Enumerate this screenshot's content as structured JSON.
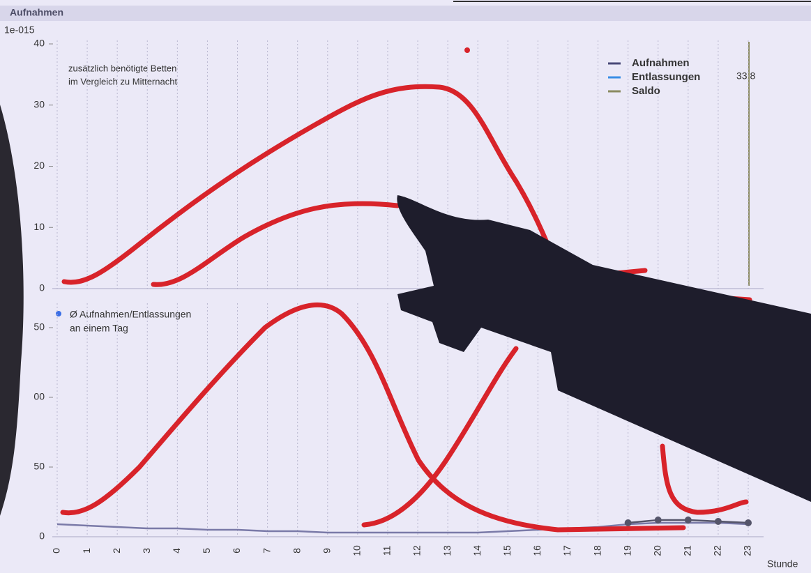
{
  "chart_data": [
    {
      "type": "line",
      "title": "Aufnahmen",
      "scale_label": "1e-015",
      "annotation_lines": [
        "zusätzlich benötigte Betten",
        "im Vergleich zu Mitternacht"
      ],
      "legend": [
        {
          "name": "Aufnahmen",
          "color": "#4a4a78"
        },
        {
          "name": "Entlassungen",
          "color": "#3a8ee6"
        },
        {
          "name": "Saldo",
          "color": "#8a8a60"
        }
      ],
      "value_readout": "33,8",
      "ylim": [
        0,
        40
      ],
      "yticks": [
        0,
        10,
        20,
        30,
        40
      ],
      "grid": true
    },
    {
      "type": "line",
      "annotation_lines": [
        "Ø Aufnahmen/Entlassungen",
        "an einem Tag"
      ],
      "categories": [
        0,
        1,
        2,
        3,
        4,
        5,
        6,
        7,
        8,
        9,
        10,
        11,
        12,
        13,
        14,
        15,
        16,
        17,
        18,
        19,
        20,
        21,
        22,
        23
      ],
      "xlabel": "Stunde",
      "ylim": [
        0,
        165
      ],
      "yticks": [
        0,
        50,
        {
          "value": 100,
          "label": "00"
        },
        {
          "value": 150,
          "label": "50"
        }
      ],
      "grid": true,
      "series": [
        {
          "color": "#7a7aa8",
          "values": [
            9,
            8,
            7,
            6,
            6,
            5,
            5,
            4,
            4,
            3,
            3,
            3,
            3,
            3,
            3,
            4,
            5,
            6,
            7,
            9,
            10,
            10,
            10,
            9
          ]
        },
        {
          "color": "#55556a",
          "markers": true,
          "values": [
            null,
            null,
            null,
            null,
            null,
            null,
            null,
            null,
            null,
            null,
            null,
            null,
            null,
            null,
            null,
            null,
            null,
            null,
            null,
            10,
            12,
            12,
            11,
            10
          ]
        }
      ]
    }
  ]
}
